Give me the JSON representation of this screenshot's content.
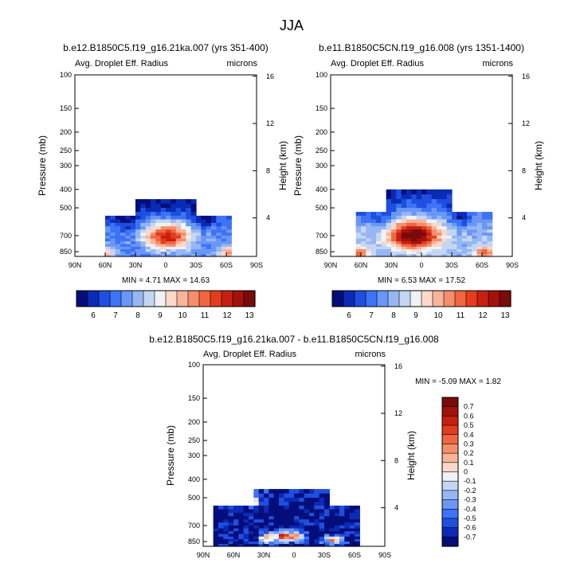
{
  "figure_title": "JJA",
  "chart_data": [
    {
      "type": "heatmap",
      "title": "b.e12.B1850C5.f19_g16.21ka.007 (yrs 351-400)",
      "subtitle_left": "Avg. Droplet Eff. Radius",
      "subtitle_right": "microns",
      "ylabel": "Pressure (mb)",
      "ylabel_right": "Height (km)",
      "xticks": [
        "90N",
        "60N",
        "30N",
        "0",
        "30S",
        "60S",
        "90S"
      ],
      "yticks": [
        "100",
        "150",
        "200",
        "250",
        "300",
        "400",
        "500",
        "700",
        "850"
      ],
      "yticks_right": [
        "16",
        "12",
        "8",
        "4"
      ],
      "stats": "MIN =   4.71   MAX =  14.63",
      "min": 4.71,
      "max": 14.63,
      "field": {
        "peak_lat": -2,
        "peak_p": 710,
        "lat_s": 22,
        "p_s": 110,
        "amp": 4.8,
        "base": 7.6,
        "edge_low_lat": 62,
        "edge_low_amp": 3.0,
        "lowp_amp": 1.8,
        "ripple": 0.9
      },
      "region": {
        "lat_n": 60,
        "lat_s": -65,
        "top_n_lat": 28,
        "top_s_lat": -30,
        "top_p": 455,
        "shoulder_p": 540
      }
    },
    {
      "type": "heatmap",
      "title": "b.e11.B1850C5CN.f19_g16.008 (yrs 1351-1400)",
      "subtitle_left": "Avg. Droplet Eff. Radius",
      "subtitle_right": "microns",
      "ylabel": "Pressure (mb)",
      "ylabel_right": "Height (km)",
      "xticks": [
        "90N",
        "60N",
        "30N",
        "0",
        "30S",
        "60S",
        "90S"
      ],
      "yticks": [
        "100",
        "150",
        "200",
        "250",
        "300",
        "400",
        "500",
        "700",
        "850"
      ],
      "yticks_right": [
        "16",
        "12",
        "8",
        "4"
      ],
      "stats": "MIN =   6.53   MAX =  17.52",
      "min": 6.53,
      "max": 17.52,
      "field": {
        "peak_lat": 8,
        "peak_p": 700,
        "lat_s": 26,
        "p_s": 120,
        "amp": 5.6,
        "base": 8.2,
        "edge_low_lat": 62,
        "edge_low_amp": 3.2,
        "lowp_amp": 1.6,
        "ripple": 0.8
      },
      "region": {
        "lat_n": 63,
        "lat_s": -72,
        "top_n_lat": 35,
        "top_s_lat": -28,
        "top_p": 400,
        "shoulder_p": 530
      }
    },
    {
      "type": "heatmap",
      "title": "b.e12.B1850C5.f19_g16.21ka.007 - b.e11.B1850C5CN.f19_g16.008",
      "subtitle_left": "Avg. Droplet Eff. Radius",
      "subtitle_right": "microns",
      "ylabel": "Pressure (mb)",
      "ylabel_right": "Height (km)",
      "xticks": [
        "90N",
        "60N",
        "30N",
        "0",
        "30S",
        "60S",
        "90S"
      ],
      "yticks": [
        "100",
        "150",
        "200",
        "250",
        "300",
        "400",
        "500",
        "700",
        "850"
      ],
      "yticks_right": [
        "16",
        "12",
        "8",
        "4"
      ],
      "stats": "MIN =  -5.09   MAX =   1.82",
      "min": -5.09,
      "max": 1.82,
      "field": {
        "base": -0.75,
        "pos_lat": 8,
        "pos_p": 800,
        "pos_amp": 1.3
      },
      "region": {
        "lat_n": 78,
        "lat_s": -63,
        "top_n_lat": 40,
        "top_s_lat": -33,
        "top_p": 455,
        "shoulder_p": 545
      }
    }
  ],
  "colorbar_abs": {
    "labels": [
      "6",
      "7",
      "8",
      "9",
      "10",
      "11",
      "12",
      "13"
    ],
    "edges": [
      5.5,
      6,
      6.5,
      7,
      7.5,
      8,
      8.5,
      9,
      9.5,
      10,
      10.5,
      11,
      11.5,
      12,
      12.5,
      13,
      13.5
    ]
  },
  "colorbar_diff": {
    "labels": [
      "0.7",
      "0.6",
      "0.5",
      "0.4",
      "0.3",
      "0.2",
      "0.1",
      "0",
      "-0.1",
      "-0.2",
      "-0.3",
      "-0.4",
      "-0.5",
      "-0.6",
      "-0.7"
    ],
    "edges": [
      -0.8,
      -0.7,
      -0.6,
      -0.5,
      -0.4,
      -0.3,
      -0.2,
      -0.1,
      0,
      0.1,
      0.2,
      0.3,
      0.4,
      0.5,
      0.6,
      0.7,
      0.8
    ]
  },
  "palette": [
    "#040e7a",
    "#0b2bb5",
    "#1e4fe0",
    "#3d73f5",
    "#6a97f6",
    "#97b6f4",
    "#c4d6f4",
    "#f0f2f5",
    "#fbd8c9",
    "#f8b49a",
    "#f58e6a",
    "#f06640",
    "#e33c1e",
    "#c82010",
    "#a3120a",
    "#7a0b0b"
  ]
}
